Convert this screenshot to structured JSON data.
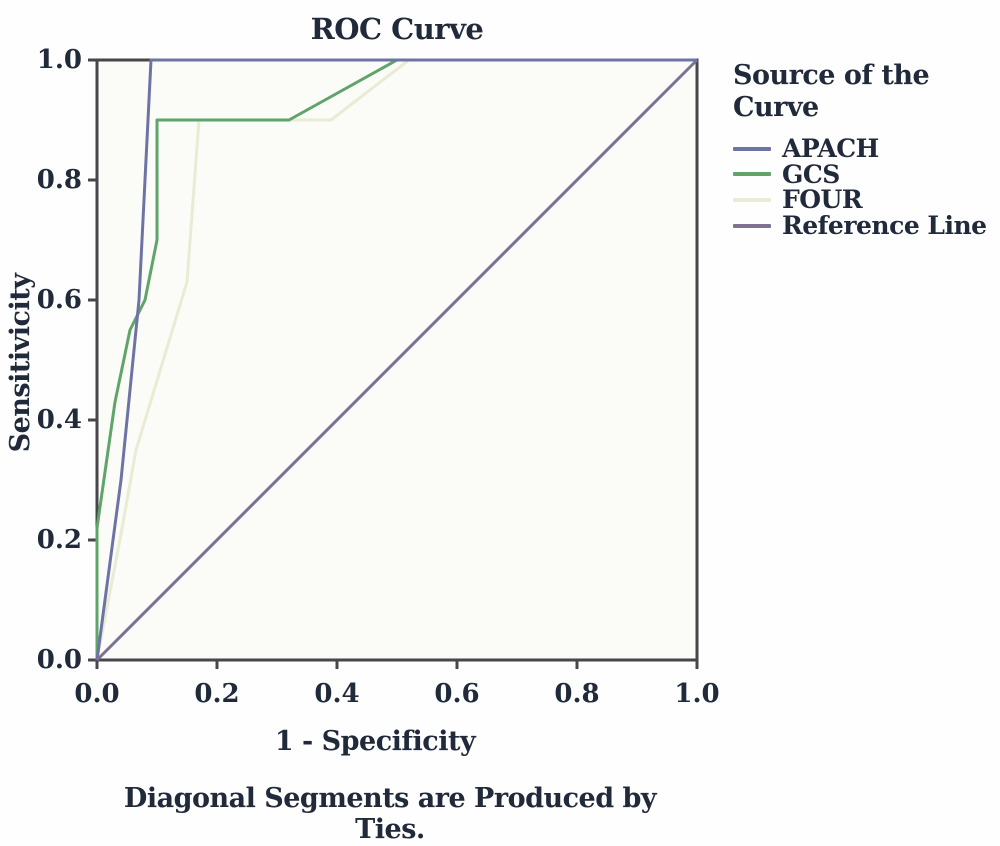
{
  "colors": {
    "text": "#212a3a",
    "axis_frame": "#46464b",
    "plot_background": "#fbfbf7"
  },
  "chart_data": {
    "type": "line",
    "title": "ROC Curve",
    "xlabel": "1 - Specificity",
    "ylabel": "Sensitivicity",
    "caption": "Diagonal Segments are Produced by Ties.",
    "legend_title": "Source of the Curve",
    "legend_position": "right",
    "xlim": [
      0,
      1
    ],
    "ylim": [
      0,
      1
    ],
    "grid": false,
    "x_ticks": [
      "0.0",
      "0.2",
      "0.4",
      "0.6",
      "0.8",
      "1.0"
    ],
    "y_ticks": [
      "0.0",
      "0.2",
      "0.4",
      "0.6",
      "0.8",
      "1.0"
    ],
    "series": [
      {
        "name": "APACH",
        "color": "#6d74a5",
        "points": [
          [
            0,
            0
          ],
          [
            0.04,
            0.3
          ],
          [
            0.07,
            0.6
          ],
          [
            0.09,
            1.0
          ],
          [
            1,
            1
          ]
        ]
      },
      {
        "name": "GCS",
        "color": "#5fa56a",
        "points": [
          [
            0,
            0
          ],
          [
            0,
            0.22
          ],
          [
            0.03,
            0.43
          ],
          [
            0.055,
            0.55
          ],
          [
            0.08,
            0.6
          ],
          [
            0.1,
            0.7
          ],
          [
            0.1,
            0.9
          ],
          [
            0.32,
            0.9
          ],
          [
            0.5,
            1.0
          ],
          [
            1,
            1
          ]
        ]
      },
      {
        "name": "FOUR",
        "color": "#e9ecd4",
        "points": [
          [
            0,
            0
          ],
          [
            0.04,
            0.21
          ],
          [
            0.065,
            0.35
          ],
          [
            0.15,
            0.63
          ],
          [
            0.17,
            0.9
          ],
          [
            0.39,
            0.9
          ],
          [
            0.52,
            1.0
          ],
          [
            1,
            1
          ]
        ]
      },
      {
        "name": "Reference Line",
        "color": "#7e7191",
        "points": [
          [
            0,
            0
          ],
          [
            1,
            1
          ]
        ]
      }
    ]
  }
}
